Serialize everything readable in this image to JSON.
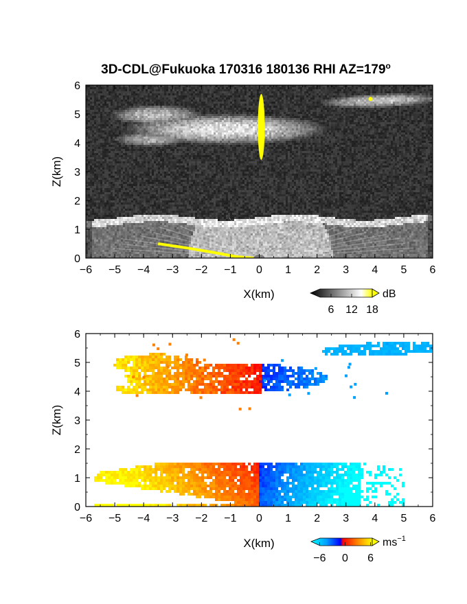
{
  "title": "3D-CDL@Fukuoka 170316 180136 RHI AZ=179",
  "title_sup": "o",
  "chart_data": [
    {
      "type": "heatmap",
      "panel": "reflectivity",
      "xlabel": "X(km)",
      "ylabel": "Z(km)",
      "xlim": [
        -6,
        6
      ],
      "ylim": [
        0,
        6
      ],
      "xticks": [
        -6,
        -5,
        -4,
        -3,
        -2,
        -1,
        0,
        1,
        2,
        3,
        4,
        5,
        6
      ],
      "yticks": [
        0,
        1,
        2,
        3,
        4,
        5,
        6
      ],
      "background": "noise",
      "colorbar": {
        "unit": "dB",
        "tick_labels": [
          "6",
          "12",
          "18"
        ],
        "tick_values": [
          6,
          12,
          18
        ],
        "range": [
          0,
          20
        ],
        "colors": [
          "#000000",
          "#ffffff",
          "#ffff00"
        ]
      },
      "features": [
        {
          "name": "cloud layer",
          "x": [
            -5.2,
            2.5
          ],
          "z": [
            3.7,
            5.2
          ]
        },
        {
          "name": "upper layer",
          "x": [
            2.0,
            6.0
          ],
          "z": [
            5.2,
            5.9
          ]
        },
        {
          "name": "boundary layer",
          "x": [
            -6.0,
            6.0
          ],
          "z": [
            0.0,
            1.5
          ]
        },
        {
          "name": "strong echo column",
          "x": [
            -0.05,
            0.15
          ],
          "z": [
            3.8,
            5.4
          ]
        }
      ]
    },
    {
      "type": "heatmap",
      "panel": "doppler velocity",
      "xlabel": "X(km)",
      "ylabel": "Z(km)",
      "xlim": [
        -6,
        6
      ],
      "ylim": [
        0,
        6
      ],
      "xticks": [
        -6,
        -5,
        -4,
        -3,
        -2,
        -1,
        0,
        1,
        2,
        3,
        4,
        5,
        6
      ],
      "yticks": [
        0,
        1,
        2,
        3,
        4,
        5,
        6
      ],
      "colorbar": {
        "unit": "ms",
        "unit_sup": "−1",
        "tick_labels": [
          "−6",
          "0",
          "6"
        ],
        "tick_values": [
          -6,
          0,
          6
        ],
        "range": [
          -8,
          8
        ],
        "colors": [
          "#00ffff",
          "#00a0ff",
          "#0000ff",
          "#ff0000",
          "#ff8000",
          "#ffff00"
        ]
      },
      "features": [
        {
          "name": "cloud layer",
          "x": [
            -5.0,
            2.5
          ],
          "z": [
            3.5,
            5.5
          ],
          "velocity": [
            6,
            -6
          ]
        },
        {
          "name": "upper layer",
          "x": [
            2.0,
            6.0
          ],
          "z": [
            5.2,
            5.9
          ],
          "velocity": [
            -5,
            -4
          ]
        },
        {
          "name": "boundary layer",
          "x": [
            -5.8,
            5.0
          ],
          "z": [
            0.0,
            1.6
          ],
          "velocity": [
            6,
            -7
          ]
        }
      ]
    }
  ]
}
